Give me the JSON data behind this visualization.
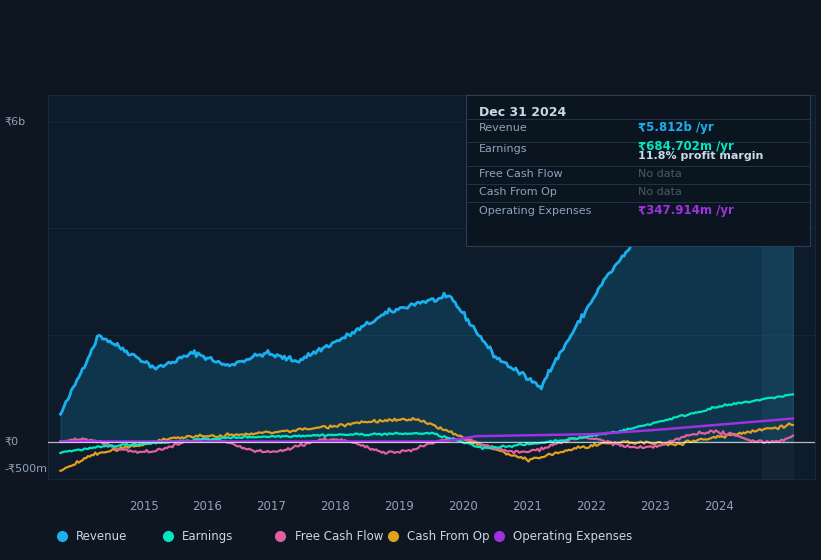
{
  "bg_color": "#0e1621",
  "plot_bg_color": "#0d1b2a",
  "grid_color": "#1e2e40",
  "text_color": "#8fa3b8",
  "title_color": "#c8d8e8",
  "y_label_top": "₹6b",
  "y_label_zero": "₹0",
  "y_label_neg": "-₹500m",
  "x_ticks": [
    2015,
    2016,
    2017,
    2018,
    2019,
    2020,
    2021,
    2022,
    2023,
    2024
  ],
  "ylim": [
    -700000000,
    6500000000
  ],
  "xlim_start": 2013.5,
  "xlim_end": 2025.5,
  "revenue_color": "#1ab0f0",
  "earnings_color": "#00e8c0",
  "fcf_color": "#e060a0",
  "cashfromop_color": "#e0a020",
  "opex_color": "#a030e0",
  "legend_items": [
    "Revenue",
    "Earnings",
    "Free Cash Flow",
    "Cash From Op",
    "Operating Expenses"
  ],
  "legend_colors": [
    "#1ab0f0",
    "#00e8c0",
    "#e060a0",
    "#e0a020",
    "#a030e0"
  ],
  "info_box": {
    "title": "Dec 31 2024",
    "revenue_label": "Revenue",
    "revenue_value": "₹5.812b /yr",
    "revenue_color": "#1ab0f0",
    "earnings_label": "Earnings",
    "earnings_value": "₹684.702m /yr",
    "earnings_color": "#00e8c0",
    "margin_text": "11.8% profit margin",
    "fcf_label": "Free Cash Flow",
    "fcf_value": "No data",
    "cashop_label": "Cash From Op",
    "cashop_value": "No data",
    "opex_label": "Operating Expenses",
    "opex_value": "₹347.914m /yr",
    "opex_color": "#a030e0",
    "nodata_color": "#4a5a6a",
    "bg_color": "#0b1520",
    "border_color": "#2a3f55",
    "label_color": "#8fa3b8",
    "value_text_color": "#c8d8e8"
  }
}
